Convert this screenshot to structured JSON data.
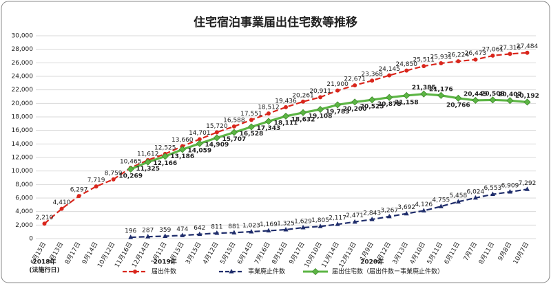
{
  "chart_data": {
    "type": "line",
    "title": "住宅宿泊事業届出住宅数等推移",
    "categories": [
      "6月15日",
      "7月13日",
      "8月17日",
      "9月14日",
      "10月12日",
      "11月16日",
      "12月14日",
      "1月11日",
      "2月15日",
      "3月15日",
      "4月12日",
      "5月15日",
      "6月14日",
      "7月16日",
      "8月15日",
      "9月17日",
      "10月10日",
      "11月14日",
      "12月13日",
      "1月9日",
      "2月12日",
      "3月13日",
      "4月10日",
      "5月11日",
      "6月11日",
      "7月7日",
      "8月11日",
      "9月8日",
      "10月7日"
    ],
    "x_group_labels": [
      "2018年",
      "(法施行日)",
      "2019年",
      "2020年"
    ],
    "ylim": [
      0,
      30000
    ],
    "yticks": [
      0,
      {
        "value": 2000,
        "label": "2,000"
      },
      {
        "value": 4000,
        "label": "4,000"
      },
      {
        "value": 6000,
        "label": "6,000"
      },
      {
        "value": 8000,
        "label": "8,000"
      },
      {
        "value": 10000,
        "label": "10,000"
      },
      {
        "value": 12000,
        "label": "12,000"
      },
      {
        "value": 14000,
        "label": "14,000"
      },
      {
        "value": 16000,
        "label": "16,000"
      },
      {
        "value": 18000,
        "label": "18,000"
      },
      {
        "value": 20000,
        "label": "20,000"
      },
      {
        "value": 22000,
        "label": "22,000"
      },
      {
        "value": 24000,
        "label": "24,000"
      },
      {
        "value": 26000,
        "label": "26,000"
      },
      {
        "value": 28000,
        "label": "28,000"
      },
      {
        "value": 30000,
        "label": "30,000"
      }
    ],
    "grid": true,
    "legend": "bottom",
    "series": [
      {
        "name": "届出件数",
        "color": "#d9261c",
        "dashed": true,
        "marker": "circle",
        "values": [
          2210,
          4410,
          6297,
          7719,
          8759,
          10465,
          11612,
          12525,
          13660,
          14701,
          15720,
          16588,
          17551,
          18512,
          19436,
          20261,
          20911,
          21900,
          22671,
          23368,
          24145,
          24850,
          25511,
          25931,
          26224,
          26473,
          27061,
          27316,
          27484
        ],
        "value_labels": [
          "2,210",
          "4,410",
          "6,297",
          "7,719",
          "8,759",
          "10,465",
          "11,612",
          "12,525",
          "13,660",
          "14,701",
          "15,720",
          "16,588",
          "17,551",
          "18,512",
          "19,436",
          "20,261",
          "20,911",
          "21,900",
          "22,671",
          "23,368",
          "24,145",
          "24,850",
          "25,511",
          "25,931",
          "26,224",
          "26,473",
          "27,061",
          "27,316",
          "27,484"
        ]
      },
      {
        "name": "事業廃止件数",
        "color": "#1f2d6b",
        "dashed": true,
        "marker": "triangle",
        "values": [
          null,
          null,
          null,
          null,
          null,
          196,
          287,
          359,
          474,
          642,
          811,
          881,
          1023,
          1169,
          1325,
          1629,
          1805,
          2117,
          2471,
          2843,
          3267,
          3692,
          4126,
          4755,
          5458,
          6024,
          6553,
          6909,
          7292
        ],
        "value_labels": [
          null,
          null,
          null,
          null,
          null,
          "196",
          "287",
          "359",
          "474",
          "642",
          "811",
          "881",
          "1,023",
          "1,169",
          "1,325",
          "1,629",
          "1,805",
          "2,117",
          "2,471",
          "2,843",
          "3,267",
          "3,692",
          "4,126",
          "4,755",
          "5,458",
          "6,024",
          "6,553",
          "6,909",
          "7,292"
        ]
      },
      {
        "name": "届出住宅数（届出件数ー事業廃止件数）",
        "color": "#5cb544",
        "dashed": false,
        "marker": "diamond",
        "values": [
          null,
          null,
          null,
          null,
          null,
          10269,
          11325,
          12166,
          13186,
          14059,
          14909,
          15707,
          16528,
          17343,
          18111,
          18632,
          19108,
          19783,
          20200,
          20525,
          20878,
          21158,
          21385,
          21176,
          20766,
          20449,
          20508,
          20407,
          20192
        ],
        "value_labels": [
          null,
          null,
          null,
          null,
          null,
          "10,269",
          "11,325",
          "12,166",
          "13,186",
          "14,059",
          "14,909",
          "15,707",
          "16,528",
          "17,343",
          "18,111",
          "18,632",
          "19,108",
          "19,783",
          "20,200",
          "20,525",
          "20,878",
          "21,158",
          "21,385",
          "21,176",
          "20,766",
          "20,449",
          "20,508",
          "20,407",
          "20,192"
        ]
      }
    ]
  }
}
